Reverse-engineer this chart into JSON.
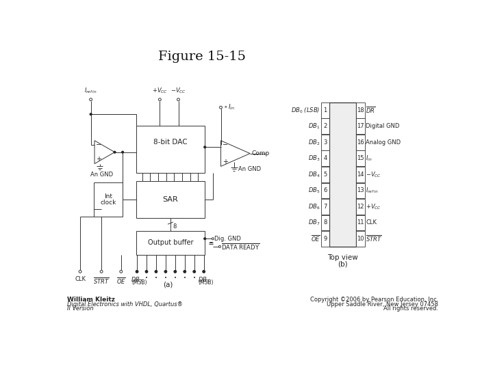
{
  "title": "Figure 15-15",
  "title_fontsize": 14,
  "background": "#ffffff",
  "left_pins": [
    1,
    2,
    3,
    4,
    5,
    6,
    7,
    8,
    9
  ],
  "right_pins": [
    18,
    17,
    16,
    15,
    14,
    13,
    12,
    11,
    10
  ],
  "footer_left_bold": "William Kleitz",
  "footer_left_1": "Digital Electronics with VHDL, Quartus®",
  "footer_left_2": "II Version",
  "footer_right_1": "Copyright ©2006 by Pearson Education, Inc.",
  "footer_right_2": "Upper Saddle River, New Jersey 07458",
  "footer_right_3": "All rights reserved."
}
